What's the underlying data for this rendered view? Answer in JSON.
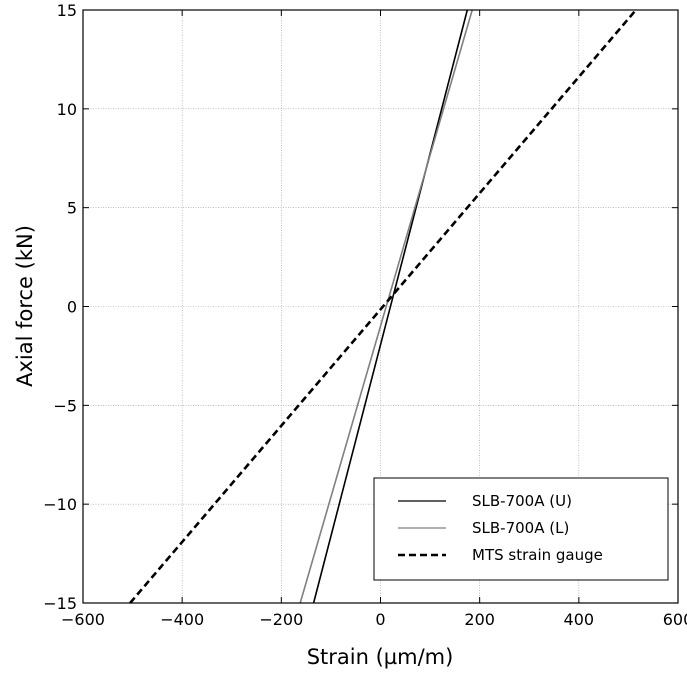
{
  "chart_data": {
    "type": "line",
    "title": "",
    "xlabel": "Strain (µm/m)",
    "ylabel": "Axial force (kN)",
    "xlim": [
      -600,
      600
    ],
    "ylim": [
      -15,
      15
    ],
    "xticks": [
      -600,
      -400,
      -200,
      0,
      200,
      400,
      600
    ],
    "yticks": [
      -15,
      -10,
      -5,
      0,
      5,
      10,
      15
    ],
    "xtick_labels": [
      "−600",
      "−400",
      "−200",
      "0",
      "200",
      "400",
      "600"
    ],
    "ytick_labels": [
      "−15",
      "−10",
      "−5",
      "0",
      "5",
      "10",
      "15"
    ],
    "grid": true,
    "legend_position": "bottom-right",
    "series": [
      {
        "name": "SLB-700A (U)",
        "color": "#000000",
        "style": "solid",
        "x": [
          -135,
          175
        ],
        "y": [
          -15,
          15
        ]
      },
      {
        "name": "SLB-700A (L)",
        "color": "#808080",
        "style": "solid",
        "x": [
          -162,
          185
        ],
        "y": [
          -15,
          15
        ]
      },
      {
        "name": "MTS strain gauge",
        "color": "#000000",
        "style": "dashed",
        "x": [
          -505,
          515
        ],
        "y": [
          -15,
          15
        ]
      }
    ]
  }
}
